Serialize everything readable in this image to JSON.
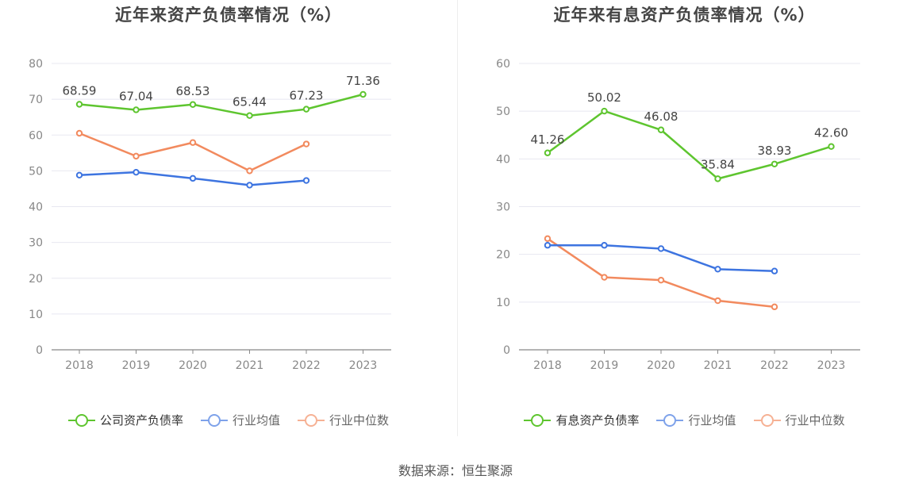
{
  "source": "数据来源：恒生聚源",
  "chart_data": [
    {
      "type": "line",
      "title": "近年来资产负债率情况（%）",
      "categories": [
        "2018",
        "2019",
        "2020",
        "2021",
        "2022",
        "2023"
      ],
      "ylim": [
        0,
        80
      ],
      "yticks": [
        0,
        10,
        20,
        30,
        40,
        50,
        60,
        70,
        80
      ],
      "grid": true,
      "legend_position": "bottom",
      "series": [
        {
          "name": "公司资产负债率",
          "color": "#5ec52f",
          "values": [
            68.59,
            67.04,
            68.53,
            65.44,
            67.23,
            71.36
          ],
          "labels": [
            "68.59",
            "67.04",
            "68.53",
            "65.44",
            "67.23",
            "71.36"
          ]
        },
        {
          "name": "行业均值",
          "color": "#3d74e0",
          "values": [
            48.8,
            49.6,
            47.9,
            46.0,
            47.3,
            null
          ]
        },
        {
          "name": "行业中位数",
          "color": "#f28a5e",
          "values": [
            60.5,
            54.1,
            57.9,
            50.0,
            57.5,
            null
          ]
        }
      ]
    },
    {
      "type": "line",
      "title": "近年来有息资产负债率情况（%）",
      "categories": [
        "2018",
        "2019",
        "2020",
        "2021",
        "2022",
        "2023"
      ],
      "ylim": [
        0,
        60
      ],
      "yticks": [
        0,
        10,
        20,
        30,
        40,
        50,
        60
      ],
      "grid": true,
      "legend_position": "bottom",
      "series": [
        {
          "name": "有息资产负债率",
          "color": "#5ec52f",
          "values": [
            41.26,
            50.02,
            46.08,
            35.84,
            38.93,
            42.6
          ],
          "labels": [
            "41.26",
            "50.02",
            "46.08",
            "35.84",
            "38.93",
            "42.60"
          ]
        },
        {
          "name": "行业均值",
          "color": "#3d74e0",
          "values": [
            21.9,
            21.9,
            21.2,
            16.9,
            16.5,
            null
          ]
        },
        {
          "name": "行业中位数",
          "color": "#f28a5e",
          "values": [
            23.3,
            15.2,
            14.6,
            10.3,
            9.0,
            null
          ]
        }
      ]
    }
  ]
}
